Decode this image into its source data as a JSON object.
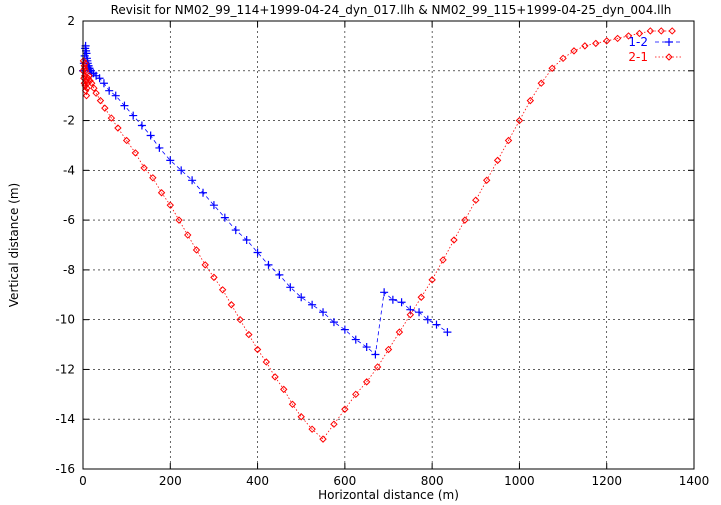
{
  "chart_data": {
    "type": "scatter",
    "title": "Revisit for NM02_99_114+1999-04-24_dyn_017.llh & NM02_99_115+1999-04-25_dyn_004.llh",
    "xlabel": "Horizontal distance (m)",
    "ylabel": "Vertical distance (m)",
    "xlim": [
      0,
      1400
    ],
    "ylim": [
      -16,
      2
    ],
    "xticks": [
      0,
      200,
      400,
      600,
      800,
      1000,
      1200,
      1400
    ],
    "yticks": [
      -16,
      -14,
      -12,
      -10,
      -8,
      -6,
      -4,
      -2,
      0,
      2
    ],
    "grid": true,
    "legend_position": "top-right",
    "series": [
      {
        "name": "1-2",
        "color": "#0000ff",
        "marker": "plus",
        "line": "dashed",
        "x": [
          0,
          2,
          4,
          5,
          6,
          7,
          8,
          9,
          10,
          11,
          12,
          13,
          14,
          15,
          16,
          18,
          20,
          24,
          30,
          38,
          48,
          60,
          75,
          95,
          115,
          135,
          155,
          175,
          200,
          225,
          250,
          275,
          300,
          325,
          350,
          375,
          400,
          425,
          450,
          475,
          500,
          525,
          550,
          575,
          600,
          625,
          650,
          670,
          690,
          710,
          730,
          750,
          770,
          790,
          810,
          835
        ],
        "y": [
          0.0,
          0.3,
          0.6,
          0.9,
          1.0,
          0.8,
          0.7,
          0.5,
          0.4,
          0.3,
          0.2,
          0.2,
          0.1,
          0.1,
          0.0,
          0.0,
          -0.1,
          -0.1,
          -0.2,
          -0.3,
          -0.5,
          -0.8,
          -1.0,
          -1.4,
          -1.8,
          -2.2,
          -2.6,
          -3.1,
          -3.6,
          -4.0,
          -4.4,
          -4.9,
          -5.4,
          -5.9,
          -6.4,
          -6.8,
          -7.3,
          -7.8,
          -8.2,
          -8.7,
          -9.1,
          -9.4,
          -9.7,
          -10.1,
          -10.4,
          -10.8,
          -11.1,
          -11.4,
          -8.9,
          -9.2,
          -9.3,
          -9.6,
          -9.7,
          -10.0,
          -10.2,
          -10.5
        ]
      },
      {
        "name": "2-1",
        "color": "#ff0000",
        "marker": "diamond",
        "line": "dotted",
        "x": [
          0,
          1,
          2,
          3,
          3,
          4,
          4,
          5,
          5,
          6,
          6,
          7,
          8,
          9,
          10,
          12,
          14,
          16,
          20,
          25,
          30,
          40,
          50,
          65,
          80,
          100,
          120,
          140,
          160,
          180,
          200,
          220,
          240,
          260,
          280,
          300,
          320,
          340,
          360,
          380,
          400,
          420,
          440,
          460,
          480,
          500,
          525,
          550,
          575,
          600,
          625,
          650,
          675,
          700,
          725,
          750,
          775,
          800,
          825,
          850,
          875,
          900,
          925,
          950,
          975,
          1000,
          1025,
          1050,
          1075,
          1100,
          1125,
          1150,
          1175,
          1200,
          1225,
          1250,
          1275,
          1300,
          1325,
          1350
        ],
        "y": [
          0.0,
          0.4,
          -0.3,
          0.2,
          -0.5,
          0.1,
          -0.2,
          0.3,
          -0.6,
          0.0,
          -0.8,
          -0.4,
          -1.0,
          -0.7,
          -0.5,
          -0.3,
          -0.2,
          -0.4,
          -0.5,
          -0.7,
          -0.9,
          -1.2,
          -1.5,
          -1.9,
          -2.3,
          -2.8,
          -3.3,
          -3.9,
          -4.3,
          -4.9,
          -5.4,
          -6.0,
          -6.6,
          -7.2,
          -7.8,
          -8.3,
          -8.8,
          -9.4,
          -10.0,
          -10.6,
          -11.2,
          -11.7,
          -12.3,
          -12.8,
          -13.4,
          -13.9,
          -14.4,
          -14.8,
          -14.2,
          -13.6,
          -13.0,
          -12.5,
          -11.9,
          -11.2,
          -10.5,
          -9.8,
          -9.1,
          -8.4,
          -7.6,
          -6.8,
          -6.0,
          -5.2,
          -4.4,
          -3.6,
          -2.8,
          -2.0,
          -1.2,
          -0.5,
          0.1,
          0.5,
          0.8,
          1.0,
          1.1,
          1.2,
          1.3,
          1.4,
          1.5,
          1.6,
          1.6,
          1.6
        ]
      }
    ]
  }
}
